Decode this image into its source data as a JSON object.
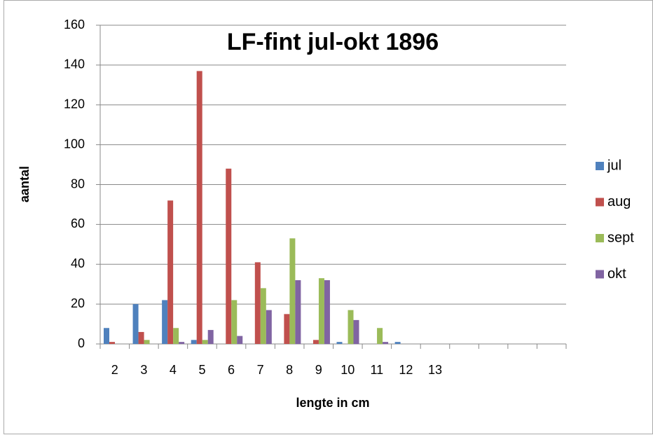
{
  "chart_data": {
    "type": "bar",
    "title": "LF-fint jul-okt 1896",
    "x_label": "lengte in cm",
    "y_label": "aantal",
    "categories": [
      "2",
      "3",
      "4",
      "5",
      "6",
      "7",
      "8",
      "9",
      "10",
      "11",
      "12",
      "13",
      null,
      null,
      null,
      null
    ],
    "series": [
      {
        "name": "jul",
        "color": "#4f81bd",
        "values": [
          8,
          20,
          22,
          2,
          0,
          0,
          0,
          0,
          1,
          0,
          1,
          0,
          null,
          null,
          null,
          null
        ]
      },
      {
        "name": "aug",
        "color": "#c0504d",
        "values": [
          1,
          6,
          72,
          137,
          88,
          41,
          15,
          2,
          0,
          0,
          0,
          0,
          null,
          null,
          null,
          null
        ]
      },
      {
        "name": "sept",
        "color": "#9bbb59",
        "values": [
          0,
          2,
          8,
          2,
          22,
          28,
          53,
          33,
          17,
          8,
          0,
          0,
          null,
          null,
          null,
          null
        ]
      },
      {
        "name": "okt",
        "color": "#8064a2",
        "values": [
          0,
          0,
          1,
          7,
          4,
          17,
          32,
          32,
          12,
          1,
          0,
          0,
          null,
          null,
          null,
          null
        ]
      }
    ],
    "ylim": [
      0,
      160
    ],
    "yticks": [
      0,
      20,
      40,
      60,
      80,
      100,
      120,
      140,
      160
    ],
    "grid": true,
    "legend": "right"
  }
}
